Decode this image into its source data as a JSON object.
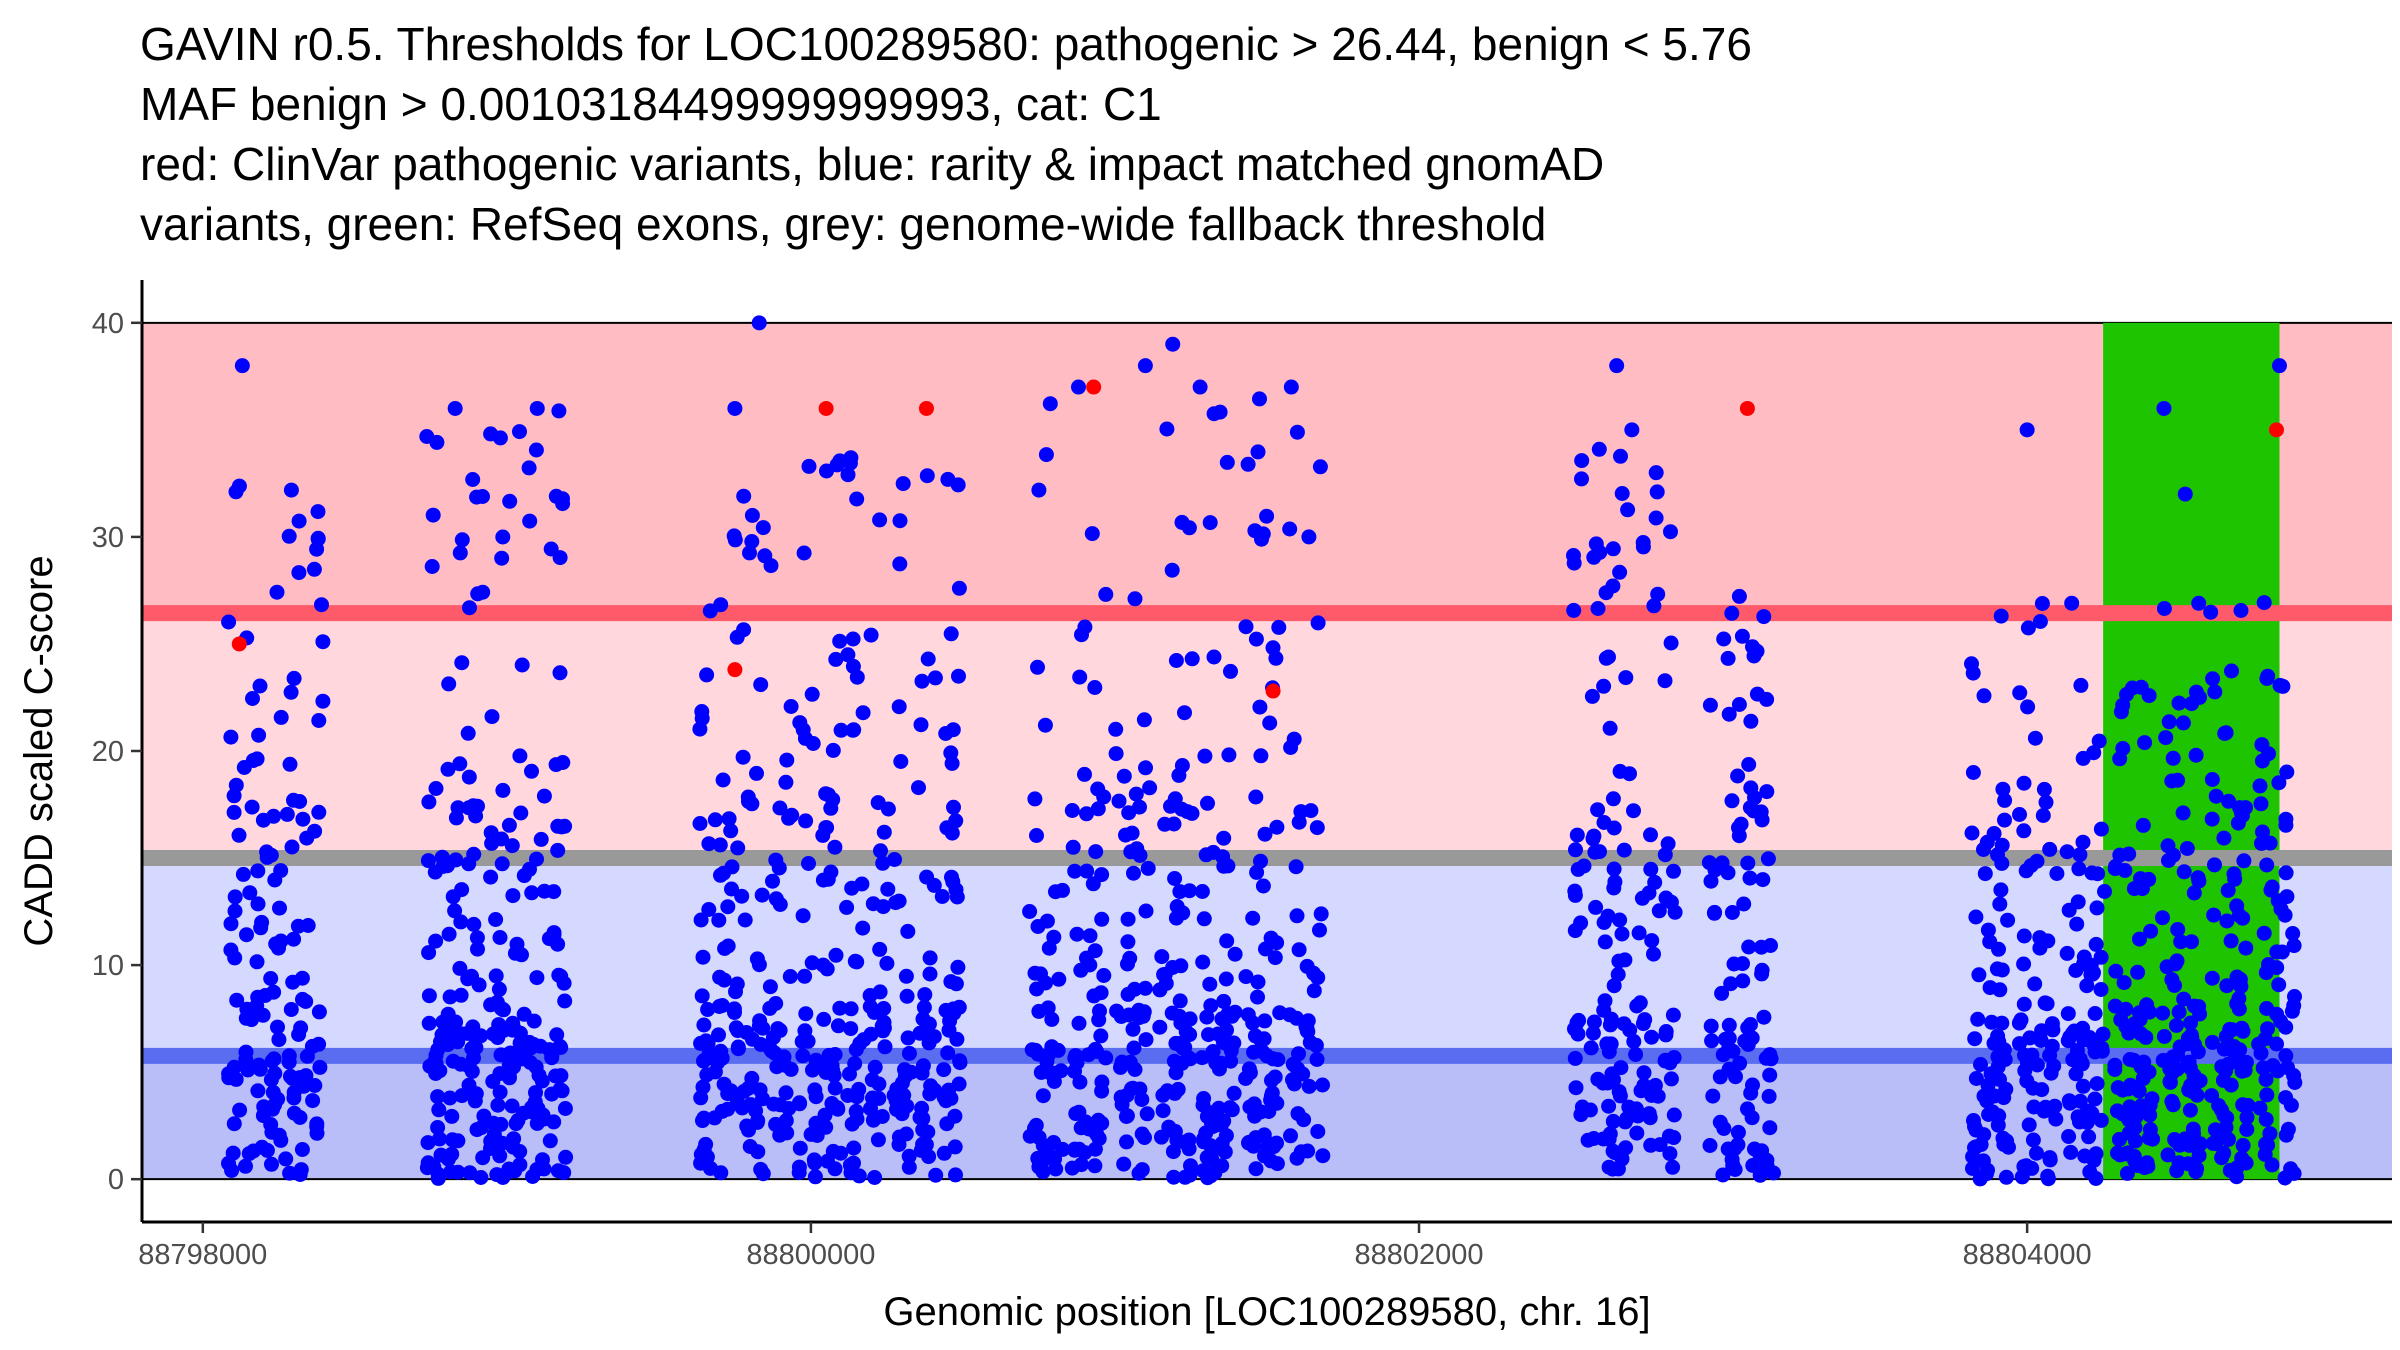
{
  "chart_data": {
    "type": "scatter",
    "title_lines": [
      "GAVIN r0.5. Thresholds for LOC100289580: pathogenic > 26.44, benign < 5.76",
      "MAF benign > 0.00103184499999999993, cat: C1",
      "red: ClinVar pathogenic variants, blue: rarity & impact matched gnomAD",
      "variants, green: RefSeq exons, grey: genome-wide fallback threshold"
    ],
    "xlabel": "Genomic position [LOC100289580, chr. 16]",
    "ylabel": "CADD scaled C-score",
    "xlim": [
      88797800,
      88805200
    ],
    "ylim": [
      -2,
      42
    ],
    "x_ticks": [
      88798000,
      88800000,
      88802000,
      88804000
    ],
    "y_ticks": [
      0,
      10,
      20,
      30,
      40
    ],
    "thresholds": {
      "pathogenic": 26.44,
      "benign": 5.76,
      "fallback": 15
    },
    "colors": {
      "pathogenic_band": "#ffbcc3",
      "mid_pathogenic_band": "#ffd7dc",
      "mid_benign_band": "#d5d9ff",
      "benign_band": "#b9bef9",
      "pathogenic_line": "#ff5a6a",
      "benign_line": "#5a6cf0",
      "fallback_line": "#999999",
      "exon": "#1ec400",
      "gnomad_point": "#0000ff",
      "clinvar_point": "#ff0000"
    },
    "exon": {
      "start": 88804250,
      "end": 88804830
    },
    "clinvar_pathogenic": [
      {
        "x": 88798120,
        "y": 25.0
      },
      {
        "x": 88799750,
        "y": 23.8
      },
      {
        "x": 88800050,
        "y": 36.0
      },
      {
        "x": 88800380,
        "y": 36.0
      },
      {
        "x": 88800930,
        "y": 37.0
      },
      {
        "x": 88801520,
        "y": 22.8
      },
      {
        "x": 88803080,
        "y": 36.0
      },
      {
        "x": 88804820,
        "y": 35.0
      }
    ],
    "gnomad_clusters": [
      {
        "x_start": 88798080,
        "x_end": 88798400,
        "n": 150,
        "y_min": 0,
        "y_max": 33,
        "seed": 11
      },
      {
        "x_start": 88798730,
        "x_end": 88799200,
        "n": 260,
        "y_min": 0,
        "y_max": 36,
        "seed": 23
      },
      {
        "x_start": 88799630,
        "x_end": 88799950,
        "n": 150,
        "y_min": 0,
        "y_max": 32,
        "seed": 37
      },
      {
        "x_start": 88799950,
        "x_end": 88800500,
        "n": 250,
        "y_min": 0,
        "y_max": 34,
        "seed": 41
      },
      {
        "x_start": 88800700,
        "x_end": 88801700,
        "n": 420,
        "y_min": 0,
        "y_max": 37,
        "seed": 53
      },
      {
        "x_start": 88802500,
        "x_end": 88802850,
        "n": 160,
        "y_min": 0,
        "y_max": 35,
        "seed": 61
      },
      {
        "x_start": 88802950,
        "x_end": 88803170,
        "n": 100,
        "y_min": 0,
        "y_max": 28,
        "seed": 71
      },
      {
        "x_start": 88803800,
        "x_end": 88804900,
        "n": 520,
        "y_min": 0,
        "y_max": 27,
        "seed": 83
      }
    ],
    "gnomad_outliers": [
      {
        "x": 88798130,
        "y": 38
      },
      {
        "x": 88798830,
        "y": 36
      },
      {
        "x": 88799100,
        "y": 36
      },
      {
        "x": 88799750,
        "y": 36
      },
      {
        "x": 88799830,
        "y": 40
      },
      {
        "x": 88800880,
        "y": 37
      },
      {
        "x": 88801100,
        "y": 38
      },
      {
        "x": 88801190,
        "y": 39
      },
      {
        "x": 88801280,
        "y": 37
      },
      {
        "x": 88801580,
        "y": 37
      },
      {
        "x": 88802650,
        "y": 38
      },
      {
        "x": 88802700,
        "y": 35
      },
      {
        "x": 88802780,
        "y": 33
      },
      {
        "x": 88804000,
        "y": 35
      },
      {
        "x": 88804450,
        "y": 36
      },
      {
        "x": 88804520,
        "y": 32
      },
      {
        "x": 88804830,
        "y": 38
      }
    ]
  }
}
